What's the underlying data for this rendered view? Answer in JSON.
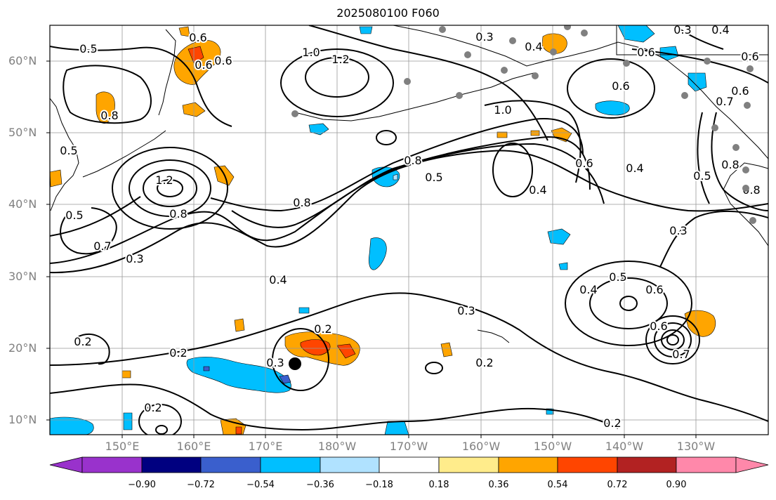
{
  "map": {
    "title": "2025080100 F060",
    "lat_labels": [
      "60°N",
      "50°N",
      "40°N",
      "30°N",
      "20°N",
      "10°N"
    ],
    "lon_labels": [
      "150°E",
      "160°E",
      "170°E",
      "180°W",
      "170°W",
      "160°W",
      "150°W",
      "140°W",
      "130°W"
    ],
    "contour_labels": [
      "0.5",
      "0.6",
      "0.6",
      "0.3",
      "0.4",
      "0.4",
      "0.6",
      "1.0",
      "1.2",
      "0.3",
      "0.6",
      "0.6",
      "0.6",
      "0.6",
      "0.8",
      "0.5",
      "0.7",
      "0.8",
      "1.0",
      "1.2",
      "0.8",
      "0.5",
      "0.8",
      "0.8",
      "0.5",
      "0.7",
      "0.3",
      "0.4",
      "0.6",
      "0.4",
      "0.4",
      "0.3",
      "0.5",
      "0.8",
      "0.4",
      "0.5",
      "0.6",
      "0.6",
      "0.7",
      "0.3",
      "0.2",
      "0.2",
      "0.3",
      "0.2",
      "0.2",
      "0.2",
      "0.2"
    ],
    "land_color": "#000000",
    "marker_color": "#808080",
    "center_marker_color": "#000000"
  },
  "colorbar": {
    "ticks": [
      "−0.90",
      "−0.72",
      "−0.54",
      "−0.36",
      "−0.18",
      "0.18",
      "0.36",
      "0.54",
      "0.72",
      "0.90"
    ],
    "colors": [
      "#9932cc",
      "#000080",
      "#3a5fcd",
      "#00bfff",
      "#b0e2ff",
      "#ffffff",
      "#ffec8b",
      "#ffa500",
      "#ff4500",
      "#b22222",
      "#ff88aa"
    ]
  }
}
